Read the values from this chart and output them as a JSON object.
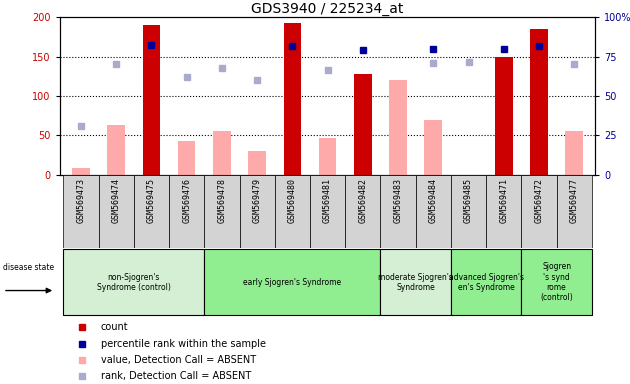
{
  "title": "GDS3940 / 225234_at",
  "samples": [
    "GSM569473",
    "GSM569474",
    "GSM569475",
    "GSM569476",
    "GSM569478",
    "GSM569479",
    "GSM569480",
    "GSM569481",
    "GSM569482",
    "GSM569483",
    "GSM569484",
    "GSM569485",
    "GSM569471",
    "GSM569472",
    "GSM569477"
  ],
  "count_values": [
    null,
    null,
    190,
    null,
    null,
    null,
    193,
    null,
    128,
    null,
    null,
    null,
    150,
    185,
    null
  ],
  "count_absent": [
    8,
    63,
    null,
    43,
    55,
    30,
    null,
    47,
    null,
    120,
    70,
    null,
    null,
    null,
    55
  ],
  "rank_present": [
    null,
    null,
    165,
    null,
    null,
    null,
    163,
    null,
    158,
    null,
    160,
    null,
    160,
    163,
    null
  ],
  "rank_absent": [
    62,
    141,
    null,
    124,
    135,
    120,
    null,
    133,
    null,
    null,
    142,
    143,
    null,
    null,
    141
  ],
  "groups": [
    {
      "label": "non-Sjogren's\nSyndrome (control)",
      "start": 0,
      "end": 4,
      "color": "#d4efd4"
    },
    {
      "label": "early Sjogren's Syndrome",
      "start": 4,
      "end": 9,
      "color": "#90ee90"
    },
    {
      "label": "moderate Sjogren's\nSyndrome",
      "start": 9,
      "end": 11,
      "color": "#d4efd4"
    },
    {
      "label": "advanced Sjogren's\nen's Syndrome",
      "start": 11,
      "end": 13,
      "color": "#90ee90"
    },
    {
      "label": "Sjogren\n's synd\nrome\n(control)",
      "start": 13,
      "end": 15,
      "color": "#90ee90"
    }
  ],
  "ylim_left": [
    0,
    200
  ],
  "ylim_right": [
    0,
    100
  ],
  "bar_width": 0.5,
  "count_color": "#cc0000",
  "count_absent_color": "#ffaaaa",
  "rank_present_color": "#000099",
  "rank_absent_color": "#aaaacc",
  "sample_bg_color": "#d3d3d3",
  "title_fontsize": 10
}
